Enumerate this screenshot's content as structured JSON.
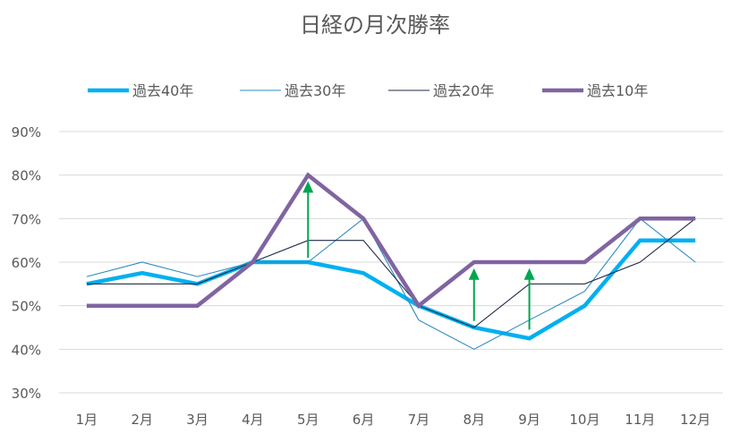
{
  "chart_data": {
    "type": "line",
    "title": "日経の月次勝率",
    "xlabel": "",
    "ylabel": "",
    "categories": [
      "1月",
      "2月",
      "3月",
      "4月",
      "5月",
      "6月",
      "7月",
      "8月",
      "9月",
      "10月",
      "11月",
      "12月"
    ],
    "ylim": [
      30,
      90
    ],
    "yticks": [
      30,
      40,
      50,
      60,
      70,
      80,
      90
    ],
    "ytick_labels": [
      "30%",
      "40%",
      "50%",
      "60%",
      "70%",
      "80%",
      "90%"
    ],
    "grid": true,
    "legend_position": "top",
    "series": [
      {
        "name": "過去40年",
        "color": "#00b0f0",
        "weight": "heavy",
        "values": [
          55,
          57.5,
          55,
          60,
          60,
          57.5,
          50,
          45,
          42.5,
          50,
          65,
          65
        ]
      },
      {
        "name": "過去30年",
        "color": "#2e8bc0",
        "weight": "thin",
        "values": [
          56.7,
          60,
          56.7,
          60,
          60,
          70,
          46.7,
          40,
          46.7,
          53.3,
          70,
          60
        ]
      },
      {
        "name": "過去20年",
        "color": "#1f2a44",
        "weight": "thin",
        "values": [
          55,
          55,
          55,
          60,
          65,
          65,
          50,
          45,
          55,
          55,
          60,
          70
        ]
      },
      {
        "name": "過去10年",
        "color": "#8064a2",
        "weight": "heavy",
        "values": [
          50,
          50,
          50,
          60,
          80,
          70,
          50,
          60,
          60,
          60,
          70,
          70
        ]
      }
    ],
    "annotations": [
      {
        "type": "arrow-up",
        "category": "5月",
        "from": 61,
        "to": 78,
        "color": "#00a651"
      },
      {
        "type": "arrow-up",
        "category": "8月",
        "from": 46.5,
        "to": 58,
        "color": "#00a651"
      },
      {
        "type": "arrow-up",
        "category": "9月",
        "from": 44.5,
        "to": 58,
        "color": "#00a651"
      }
    ]
  }
}
